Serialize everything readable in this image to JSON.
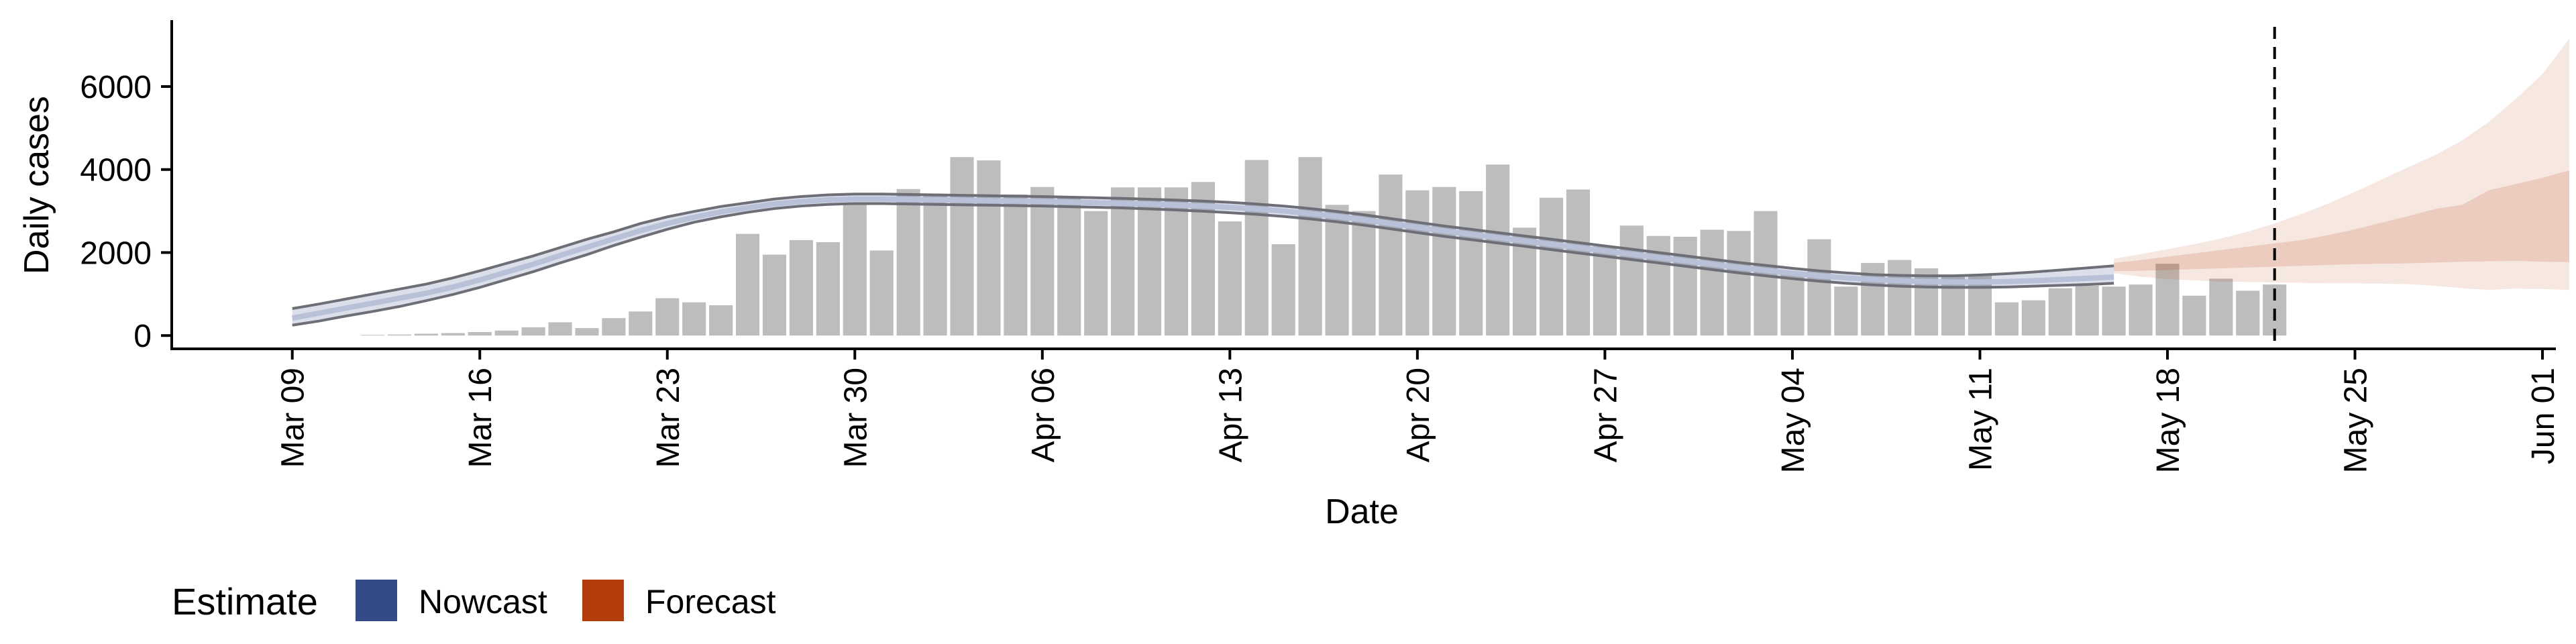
{
  "chart_data": {
    "type": "bar",
    "title": "",
    "xlabel": "Date",
    "ylabel": "Daily cases",
    "ylim": [
      -320,
      7600
    ],
    "y_ticks": [
      0,
      2000,
      4000,
      6000
    ],
    "x_ticks": [
      "Mar 09",
      "Mar 16",
      "Mar 23",
      "Mar 30",
      "Apr 06",
      "Apr 13",
      "Apr 20",
      "Apr 27",
      "May 04",
      "May 11",
      "May 18",
      "May 25",
      "Jun 01"
    ],
    "x_start_date": "2020-03-09",
    "x_range_days": [
      -4.5,
      84.5
    ],
    "grid": false,
    "legend": {
      "title": "Estimate",
      "position": "bottom-left",
      "items": [
        {
          "label": "Nowcast",
          "color": "#344b8a"
        },
        {
          "label": "Forecast",
          "color": "#b33c0c"
        }
      ]
    },
    "vline_date": "2020-05-22",
    "bar_color": "#bdbdbd",
    "bar_start_date": "2020-03-12",
    "bars": [
      15,
      25,
      45,
      60,
      85,
      120,
      200,
      320,
      180,
      420,
      580,
      900,
      800,
      730,
      2450,
      1950,
      2300,
      2250,
      3200,
      2050,
      3530,
      3400,
      4300,
      4220,
      3400,
      3580,
      3350,
      3000,
      3570,
      3570,
      3570,
      3700,
      2750,
      4230,
      2200,
      4300,
      3150,
      3000,
      3880,
      3500,
      3580,
      3480,
      4120,
      2600,
      3320,
      3520,
      2150,
      2650,
      2400,
      2380,
      2550,
      2520,
      3000,
      1520,
      2320,
      1180,
      1750,
      1820,
      1620,
      1450,
      1480,
      800,
      850,
      1140,
      1200,
      1180,
      1230,
      1730,
      960,
      1370,
      1080,
      1230
    ],
    "nowcast_start_date": "2020-03-09",
    "nowcast_median": [
      420,
      540,
      660,
      780,
      900,
      1020,
      1170,
      1340,
      1530,
      1720,
      1930,
      2130,
      2330,
      2530,
      2700,
      2850,
      2980,
      3080,
      3170,
      3230,
      3270,
      3290,
      3290,
      3280,
      3270,
      3260,
      3250,
      3240,
      3230,
      3215,
      3200,
      3185,
      3165,
      3145,
      3120,
      3090,
      3050,
      3000,
      2940,
      2870,
      2790,
      2700,
      2610,
      2520,
      2440,
      2360,
      2280,
      2200,
      2120,
      2040,
      1960,
      1880,
      1800,
      1720,
      1640,
      1570,
      1500,
      1440,
      1390,
      1350,
      1320,
      1300,
      1290,
      1290,
      1300,
      1320,
      1350,
      1380,
      1410
    ],
    "nowcast_lower": [
      250,
      350,
      470,
      580,
      700,
      840,
      990,
      1160,
      1350,
      1540,
      1750,
      1950,
      2170,
      2370,
      2560,
      2730,
      2860,
      2970,
      3060,
      3120,
      3160,
      3180,
      3180,
      3170,
      3160,
      3150,
      3140,
      3130,
      3120,
      3105,
      3090,
      3075,
      3050,
      3025,
      2995,
      2960,
      2920,
      2870,
      2810,
      2740,
      2660,
      2570,
      2480,
      2390,
      2310,
      2230,
      2150,
      2070,
      1990,
      1910,
      1830,
      1750,
      1670,
      1590,
      1510,
      1440,
      1370,
      1310,
      1260,
      1220,
      1190,
      1170,
      1160,
      1160,
      1170,
      1190,
      1210,
      1230,
      1260
    ],
    "nowcast_upper": [
      650,
      760,
      880,
      1000,
      1120,
      1240,
      1390,
      1560,
      1740,
      1920,
      2120,
      2320,
      2500,
      2700,
      2860,
      2990,
      3110,
      3200,
      3290,
      3350,
      3390,
      3410,
      3410,
      3400,
      3390,
      3380,
      3370,
      3360,
      3350,
      3335,
      3320,
      3305,
      3285,
      3265,
      3240,
      3210,
      3170,
      3120,
      3060,
      2990,
      2910,
      2820,
      2730,
      2640,
      2560,
      2480,
      2400,
      2320,
      2240,
      2160,
      2080,
      2000,
      1920,
      1840,
      1760,
      1690,
      1620,
      1560,
      1510,
      1470,
      1450,
      1440,
      1440,
      1460,
      1490,
      1530,
      1580,
      1630,
      1680
    ],
    "forecast_start_date": "2020-05-16",
    "forecast_lower": [
      1500,
      1420,
      1360,
      1330,
      1300,
      1290,
      1280,
      1270,
      1260,
      1260,
      1250,
      1240,
      1200,
      1140,
      1100,
      1130,
      1120,
      1100
    ],
    "forecast_upper": [
      1850,
      1960,
      2080,
      2200,
      2340,
      2500,
      2700,
      2930,
      3180,
      3460,
      3760,
      4060,
      4350,
      4700,
      5150,
      5700,
      6300,
      7150
    ],
    "forecast_inner_lower": [
      1550,
      1560,
      1580,
      1600,
      1620,
      1640,
      1660,
      1680,
      1700,
      1720,
      1730,
      1740,
      1760,
      1780,
      1790,
      1800,
      1780,
      1770
    ],
    "forecast_inner_upper": [
      1750,
      1820,
      1900,
      1980,
      2060,
      2140,
      2220,
      2300,
      2420,
      2560,
      2720,
      2880,
      3050,
      3150,
      3500,
      3650,
      3800,
      3980
    ]
  }
}
